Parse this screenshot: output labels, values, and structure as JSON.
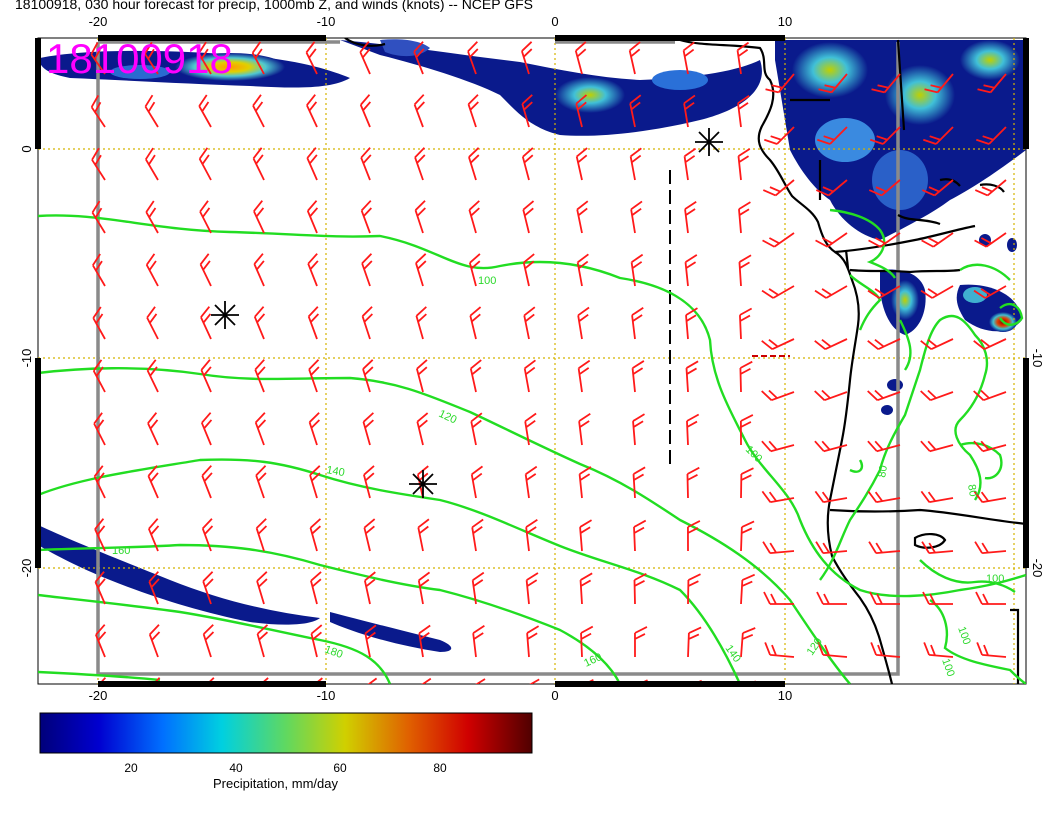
{
  "title": "18100918, 030 hour forecast for precip, 1000mb Z, and winds (knots) -- NCEP GFS",
  "stamp": "18100918",
  "axes": {
    "top_ticks": [
      "-20",
      "-10",
      "0",
      "10"
    ],
    "bottom_ticks": [
      "-20",
      "-10",
      "0",
      "10"
    ],
    "left_ticks": [
      "0",
      "-10",
      "-20"
    ],
    "right_ticks": [
      "-10",
      "-20"
    ]
  },
  "contour_labels": [
    "100",
    "120",
    "140",
    "160",
    "180",
    "160",
    "140",
    "120",
    "100",
    "80",
    "100",
    "100",
    "80",
    "100"
  ],
  "colorbar": {
    "label": "Precipitation, mm/day",
    "ticks": [
      "20",
      "40",
      "60",
      "80"
    ],
    "range": [
      2,
      96
    ]
  },
  "colors": {
    "precip_low": "#0a1a8c",
    "precip_mid": "#3fc0d8",
    "precip_high": "#d8c000",
    "contour": "#22dd22",
    "barb": "#ff1a1a",
    "coast": "#000000",
    "grid": "#d4b400",
    "stamp": "#ff00ff"
  },
  "icons": [
    "asterisk-marker-icon",
    "asterisk-marker-icon",
    "asterisk-marker-icon"
  ]
}
